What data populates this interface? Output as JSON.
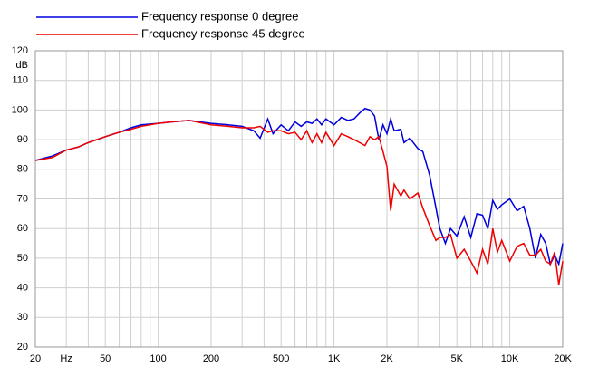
{
  "chart_data": {
    "type": "line",
    "legend_position": "top-left",
    "ylabel": "dB",
    "xscale": "log",
    "xlim": [
      20,
      20000
    ],
    "ylim": [
      20,
      120
    ],
    "yticks": [
      20,
      30,
      40,
      50,
      60,
      70,
      80,
      90,
      100,
      110,
      120
    ],
    "xticks": [
      20,
      {
        "value": 30,
        "label": "Hz"
      },
      50,
      100,
      200,
      500,
      {
        "value": 1000,
        "label": "1K"
      },
      {
        "value": 2000,
        "label": "2K"
      },
      {
        "value": 5000,
        "label": "5K"
      },
      {
        "value": 10000,
        "label": "10K"
      },
      {
        "value": 20000,
        "label": "20K"
      }
    ],
    "xgrid": [
      20,
      30,
      40,
      50,
      60,
      70,
      80,
      90,
      100,
      200,
      300,
      400,
      500,
      600,
      700,
      800,
      900,
      1000,
      2000,
      3000,
      4000,
      5000,
      6000,
      7000,
      8000,
      9000,
      10000,
      20000
    ],
    "grid": true,
    "x": [
      20,
      25,
      30,
      35,
      40,
      50,
      60,
      70,
      80,
      100,
      120,
      150,
      200,
      250,
      300,
      350,
      380,
      420,
      450,
      500,
      550,
      600,
      650,
      700,
      750,
      800,
      850,
      900,
      1000,
      1100,
      1200,
      1300,
      1400,
      1500,
      1600,
      1700,
      1800,
      1900,
      2000,
      2100,
      2200,
      2400,
      2500,
      2700,
      3000,
      3200,
      3500,
      3800,
      4000,
      4300,
      4600,
      5000,
      5500,
      6000,
      6500,
      7000,
      7500,
      8000,
      8500,
      9000,
      10000,
      11000,
      12000,
      13000,
      14000,
      15000,
      16000,
      17000,
      18000,
      19000,
      20000
    ],
    "series": [
      {
        "name": "Frequency response 0 degree",
        "color": "#0000dd",
        "values": [
          83,
          84.5,
          86.5,
          87.5,
          89,
          91,
          92.5,
          94,
          95,
          95.5,
          96,
          96.5,
          95.5,
          95,
          94.5,
          93,
          90.5,
          97,
          92,
          95,
          93,
          96,
          94.5,
          96,
          95.5,
          97,
          95,
          97,
          95,
          97.5,
          96.5,
          97,
          99,
          100.5,
          100,
          98,
          90,
          95,
          92,
          97,
          93,
          93.5,
          89,
          90.5,
          87,
          86,
          78,
          67,
          60,
          55,
          60,
          57.5,
          64,
          57,
          65,
          64.5,
          60,
          69.5,
          66.5,
          68,
          70,
          66,
          67.5,
          60,
          50,
          58,
          55,
          48,
          51,
          48,
          55
        ]
      },
      {
        "name": "Frequency response 45 degree",
        "color": "#ee0000",
        "values": [
          83,
          84,
          86.5,
          87.5,
          89,
          91,
          92.5,
          93.5,
          94.5,
          95.5,
          96,
          96.5,
          95,
          94.5,
          94,
          94,
          94.5,
          92.5,
          93,
          93,
          92,
          92.5,
          90,
          93,
          89,
          92,
          89,
          92.5,
          88,
          92,
          91,
          90,
          89,
          88,
          91,
          90,
          91,
          86,
          81,
          66,
          75,
          71,
          73,
          70,
          72,
          67,
          61,
          56,
          57,
          57,
          58,
          50,
          53,
          49,
          45,
          53,
          48,
          60,
          52,
          56,
          49,
          54,
          55,
          51,
          51,
          53,
          49,
          48,
          52,
          41,
          49
        ]
      }
    ]
  }
}
